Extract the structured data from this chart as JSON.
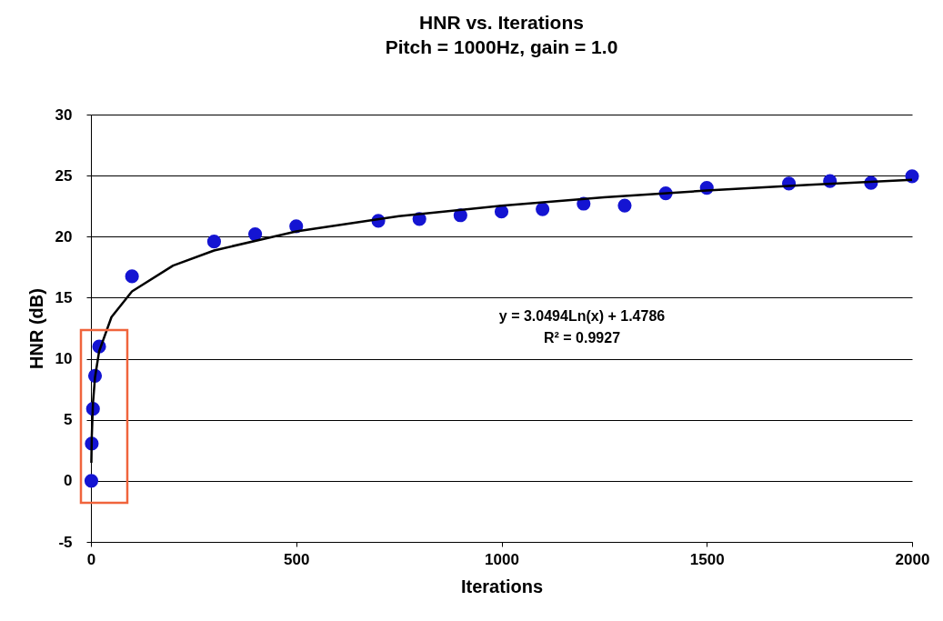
{
  "chart_data": {
    "type": "scatter",
    "title": "HNR vs. Iterations",
    "subtitle": "Pitch = 1000Hz, gain = 1.0",
    "xlabel": "Iterations",
    "ylabel": "HNR (dB)",
    "xlim": [
      0,
      2000
    ],
    "xticks": [
      0,
      500,
      1000,
      1500,
      2000
    ],
    "ylim": [
      -5,
      30
    ],
    "yticks": [
      -5,
      0,
      5,
      10,
      15,
      20,
      25,
      30
    ],
    "grid": "y",
    "marker": "circle",
    "annotations": [
      "y = 3.0494Ln(x) + 1.4786",
      "R² = 0.9927"
    ],
    "series": [
      {
        "color": "#1414d2",
        "x": [
          1,
          2,
          5,
          10,
          20,
          100,
          300,
          400,
          500,
          700,
          800,
          900,
          1000,
          1100,
          1200,
          1300,
          1400,
          1500,
          1700,
          1800,
          1900,
          2000
        ],
        "values": [
          0,
          3.05,
          5.9,
          8.6,
          11.0,
          16.75,
          19.6,
          20.2,
          20.85,
          21.3,
          21.45,
          21.75,
          22.05,
          22.25,
          22.7,
          22.55,
          23.55,
          24.0,
          24.35,
          24.55,
          24.4,
          24.95
        ]
      },
      {
        "type": "line",
        "color": "#000000",
        "line_style": "solid",
        "marker": "none",
        "x": [
          1,
          2,
          5,
          10,
          20,
          50,
          100,
          200,
          300,
          500,
          750,
          1000,
          1250,
          1500,
          1750,
          2000
        ],
        "values": [
          1.48,
          3.59,
          6.39,
          8.5,
          10.61,
          13.41,
          15.52,
          17.63,
          18.87,
          20.43,
          21.67,
          22.54,
          23.22,
          23.78,
          24.25,
          24.66
        ]
      }
    ]
  }
}
